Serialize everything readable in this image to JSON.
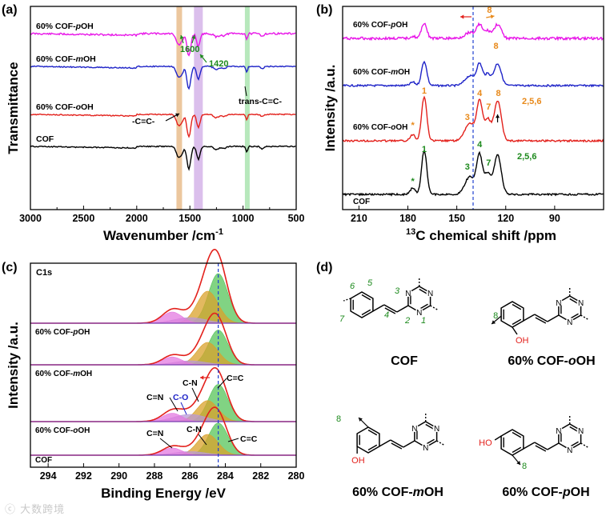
{
  "watermark": "ⓒ 大数跨境",
  "colors": {
    "black": "#000000",
    "red": "#e3211c",
    "blue": "#1f24c8",
    "magenta": "#e815e8",
    "green": "#1d8a1d",
    "orange": "#e8891a",
    "dash": "#1f3fd0",
    "orangeBand": "#e6b47e",
    "purpleBand": "#cfa9e6",
    "greenBand": "#9fe0a6",
    "fillGreen": "#57c45a",
    "fillOrange": "#d9a12b",
    "fillPurple": "#b99ad6",
    "fillMagenta": "#e37ae0"
  },
  "chart_data": [
    {
      "panel": "(a)",
      "type": "line",
      "xlabel": "Wavenumber /cm-1",
      "xlabel_main": "Wavenumber /cm",
      "xlabel_sup": "-1",
      "ylabel": "Transmittance",
      "xlim": [
        3000,
        500
      ],
      "xticks": [
        "3000",
        "2500",
        "2000",
        "1500",
        "1000",
        "500"
      ],
      "bands_cm1": [
        1600,
        1420,
        960
      ],
      "series": [
        {
          "name": "60% COF-pOH",
          "prefix": "60% COF-",
          "italic": "p",
          "suffix": "OH",
          "color": "magenta"
        },
        {
          "name": "60% COF-mOH",
          "prefix": "60% COF-",
          "italic": "m",
          "suffix": "OH",
          "color": "blue"
        },
        {
          "name": "60% COF-oOH",
          "prefix": "60% COF-",
          "italic": "o",
          "suffix": "OH",
          "color": "red"
        },
        {
          "name": "COF",
          "prefix": "COF",
          "italic": "",
          "suffix": "",
          "color": "black"
        }
      ],
      "annotations": {
        "a1600": "1600",
        "a1420": "1420",
        "cc": "-C=C-",
        "trans": "trans-C=C-"
      }
    },
    {
      "panel": "(b)",
      "type": "line",
      "xlabel": "13C chemical shift /ppm",
      "xlabel_sup": "13",
      "xlabel_main": "C chemical shift /ppm",
      "ylabel": "Intensity /a.u.",
      "xlim": [
        220,
        60
      ],
      "xticks": [
        "210",
        "180",
        "150",
        "120",
        "90"
      ],
      "dashed_line_ppm": 140,
      "series": [
        {
          "name": "60% COF-pOH",
          "prefix": "60% COF-",
          "italic": "p",
          "suffix": "OH",
          "color": "magenta"
        },
        {
          "name": "60% COF-mOH",
          "prefix": "60% COF-",
          "italic": "m",
          "suffix": "OH",
          "color": "blue"
        },
        {
          "name": "60% COF-oOH",
          "prefix": "60% COF-",
          "italic": "o",
          "suffix": "OH",
          "color": "red"
        },
        {
          "name": "COF",
          "prefix": "COF",
          "italic": "",
          "suffix": "",
          "color": "black"
        }
      ],
      "peak_labels": {
        "p1": "1",
        "p3": "3",
        "p4": "4",
        "p7": "7",
        "p8": "8",
        "p256": "2,5,6",
        "pstar": "*"
      }
    },
    {
      "panel": "(c)",
      "type": "line",
      "title": "C1s",
      "xlabel": "Binding Energy /eV",
      "ylabel": "Intensity /a.u.",
      "xlim": [
        295,
        280
      ],
      "xticks": [
        "294",
        "292",
        "290",
        "288",
        "286",
        "284",
        "282",
        "280"
      ],
      "dashed_line_eV": 284.4,
      "series": [
        {
          "name": "60% COF-pOH",
          "prefix": "60% COF-",
          "italic": "p",
          "suffix": "OH"
        },
        {
          "name": "60% COF-mOH",
          "prefix": "60% COF-",
          "italic": "m",
          "suffix": "OH"
        },
        {
          "name": "60% COF-oOH",
          "prefix": "60% COF-",
          "italic": "o",
          "suffix": "OH"
        },
        {
          "name": "COF",
          "prefix": "COF",
          "italic": "",
          "suffix": "",
          "color": "black"
        }
      ],
      "components": {
        "cc": "C=C",
        "cn": "C-N",
        "cdn": "C=N",
        "co": "C-O"
      }
    },
    {
      "panel": "(d)",
      "type": "diagram",
      "structures": [
        {
          "name": "COF",
          "prefix": "COF",
          "italic": "",
          "suffix": ""
        },
        {
          "name": "60% COF-oOH",
          "prefix": "60% COF-",
          "italic": "o",
          "suffix": "OH"
        },
        {
          "name": "60% COF-mOH",
          "prefix": "60% COF-",
          "italic": "m",
          "suffix": "OH"
        },
        {
          "name": "60% COF-pOH",
          "prefix": "60% COF-",
          "italic": "p",
          "suffix": "OH"
        }
      ],
      "atom_labels": {
        "n": "N",
        "oh": "OH",
        "ho": "HO",
        "n1": "1",
        "n2": "2",
        "n3": "3",
        "n4": "4",
        "n5": "5",
        "n6": "6",
        "n7": "7",
        "n8": "8"
      }
    }
  ]
}
